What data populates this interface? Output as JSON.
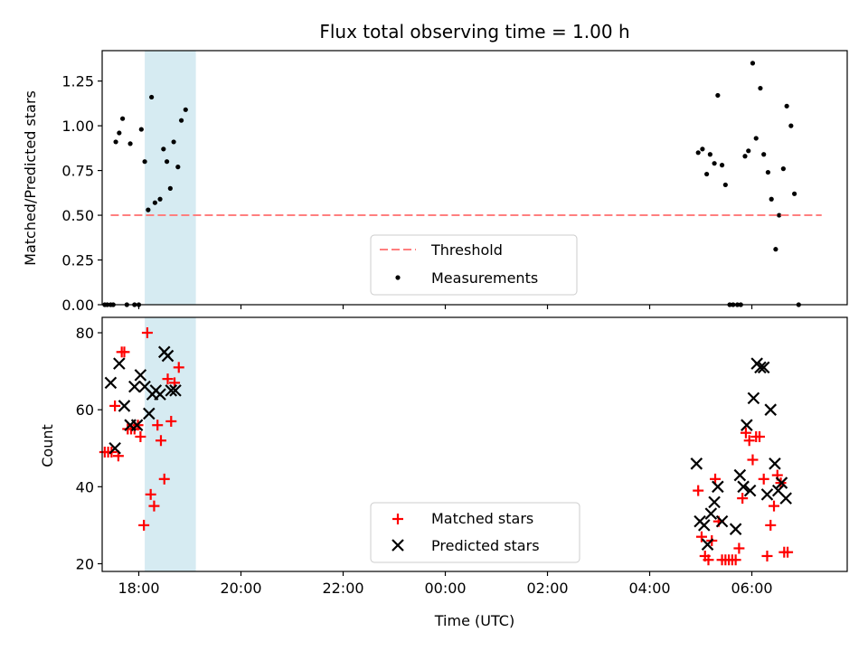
{
  "chart_data": [
    {
      "type": "scatter",
      "title": "Flux total observing time = 1.00 h",
      "xlabel": "",
      "ylabel": "Matched/Predicted stars",
      "ylim": [
        0,
        1.42
      ],
      "xlim": [
        "17:17",
        "07:52"
      ],
      "x_tick_labels": [
        "18:00",
        "20:00",
        "22:00",
        "00:00",
        "02:00",
        "04:00",
        "06:00"
      ],
      "y_ticks": [
        "0.00",
        "0.25",
        "0.50",
        "0.75",
        "1.00",
        "1.25"
      ],
      "highlight_span": [
        "18:07",
        "19:07"
      ],
      "highlight_color": "#add8e6",
      "threshold": {
        "name": "Threshold",
        "value": 0.5,
        "x_range": [
          "17:27",
          "07:22"
        ],
        "color": "#ff7f7f"
      },
      "legend": {
        "position": "lower-center",
        "entries": [
          "Threshold",
          "Measurements"
        ]
      },
      "series": [
        {
          "name": "Measurements",
          "marker": "dot",
          "color": "#000000",
          "points": [
            [
              "17:20",
              0.0
            ],
            [
              "17:23",
              0.0
            ],
            [
              "17:27",
              0.0
            ],
            [
              "17:30",
              0.0
            ],
            [
              "17:33",
              0.91
            ],
            [
              "17:37",
              0.96
            ],
            [
              "17:41",
              1.04
            ],
            [
              "17:46",
              0.0
            ],
            [
              "17:50",
              0.9
            ],
            [
              "17:55",
              0.0
            ],
            [
              "18:00",
              0.0
            ],
            [
              "18:03",
              0.98
            ],
            [
              "18:07",
              0.8
            ],
            [
              "18:11",
              0.53
            ],
            [
              "18:15",
              1.16
            ],
            [
              "18:19",
              0.57
            ],
            [
              "18:25",
              0.59
            ],
            [
              "18:29",
              0.87
            ],
            [
              "18:33",
              0.8
            ],
            [
              "18:37",
              0.65
            ],
            [
              "18:41",
              0.91
            ],
            [
              "18:46",
              0.77
            ],
            [
              "18:50",
              1.03
            ],
            [
              "18:55",
              1.09
            ],
            [
              "04:57",
              0.85
            ],
            [
              "05:02",
              0.87
            ],
            [
              "05:07",
              0.73
            ],
            [
              "05:11",
              0.84
            ],
            [
              "05:16",
              0.79
            ],
            [
              "05:20",
              1.17
            ],
            [
              "05:25",
              0.78
            ],
            [
              "05:29",
              0.67
            ],
            [
              "05:34",
              0.0
            ],
            [
              "05:38",
              0.0
            ],
            [
              "05:43",
              0.0
            ],
            [
              "05:47",
              0.0
            ],
            [
              "05:52",
              0.83
            ],
            [
              "05:56",
              0.86
            ],
            [
              "06:01",
              1.35
            ],
            [
              "06:05",
              0.93
            ],
            [
              "06:10",
              1.21
            ],
            [
              "06:14",
              0.84
            ],
            [
              "06:19",
              0.74
            ],
            [
              "06:23",
              0.59
            ],
            [
              "06:28",
              0.31
            ],
            [
              "06:32",
              0.5
            ],
            [
              "06:37",
              0.76
            ],
            [
              "06:41",
              1.11
            ],
            [
              "06:46",
              1.0
            ],
            [
              "06:50",
              0.62
            ],
            [
              "06:55",
              0.0
            ]
          ]
        }
      ]
    },
    {
      "type": "scatter",
      "title": "",
      "xlabel": "Time (UTC)",
      "ylabel": "Count",
      "ylim": [
        18,
        84
      ],
      "xlim": [
        "17:17",
        "07:52"
      ],
      "x_tick_labels": [
        "18:00",
        "20:00",
        "22:00",
        "00:00",
        "02:00",
        "04:00",
        "06:00"
      ],
      "y_ticks": [
        "20",
        "40",
        "60",
        "80"
      ],
      "highlight_span": [
        "18:07",
        "19:07"
      ],
      "highlight_color": "#add8e6",
      "legend": {
        "position": "lower-center",
        "entries": [
          "Matched stars",
          "Predicted stars"
        ]
      },
      "series": [
        {
          "name": "Matched stars",
          "marker": "plus",
          "color": "#ff0000",
          "points": [
            [
              "17:20",
              49
            ],
            [
              "17:24",
              49
            ],
            [
              "17:28",
              49
            ],
            [
              "17:32",
              61
            ],
            [
              "17:36",
              48
            ],
            [
              "17:40",
              75
            ],
            [
              "17:43",
              75
            ],
            [
              "17:47",
              55
            ],
            [
              "17:51",
              55
            ],
            [
              "17:55",
              55
            ],
            [
              "17:59",
              56
            ],
            [
              "18:02",
              53
            ],
            [
              "18:06",
              30
            ],
            [
              "18:10",
              80
            ],
            [
              "18:14",
              38
            ],
            [
              "18:18",
              35
            ],
            [
              "18:22",
              56
            ],
            [
              "18:26",
              52
            ],
            [
              "18:30",
              42
            ],
            [
              "18:34",
              68
            ],
            [
              "18:38",
              57
            ],
            [
              "18:42",
              67
            ],
            [
              "18:47",
              71
            ],
            [
              "04:57",
              39
            ],
            [
              "05:01",
              27
            ],
            [
              "05:05",
              22
            ],
            [
              "05:09",
              21
            ],
            [
              "05:13",
              26
            ],
            [
              "05:17",
              42
            ],
            [
              "05:21",
              31
            ],
            [
              "05:25",
              21
            ],
            [
              "05:29",
              21
            ],
            [
              "05:33",
              21
            ],
            [
              "05:37",
              21
            ],
            [
              "05:41",
              21
            ],
            [
              "05:45",
              24
            ],
            [
              "05:49",
              37
            ],
            [
              "05:53",
              54
            ],
            [
              "05:57",
              52
            ],
            [
              "06:01",
              47
            ],
            [
              "06:05",
              53
            ],
            [
              "06:09",
              53
            ],
            [
              "06:14",
              42
            ],
            [
              "06:18",
              22
            ],
            [
              "06:22",
              30
            ],
            [
              "06:26",
              35
            ],
            [
              "06:30",
              43
            ],
            [
              "06:34",
              41
            ],
            [
              "06:38",
              23
            ],
            [
              "06:42",
              23
            ]
          ]
        },
        {
          "name": "Predicted stars",
          "marker": "x",
          "color": "#000000",
          "points": [
            [
              "17:27",
              67
            ],
            [
              "17:32",
              50
            ],
            [
              "17:37",
              72
            ],
            [
              "17:43",
              61
            ],
            [
              "17:50",
              56
            ],
            [
              "17:55",
              66
            ],
            [
              "17:58",
              56
            ],
            [
              "18:02",
              69
            ],
            [
              "18:07",
              66
            ],
            [
              "18:12",
              59
            ],
            [
              "18:16",
              64
            ],
            [
              "18:20",
              65
            ],
            [
              "18:25",
              64
            ],
            [
              "18:30",
              75
            ],
            [
              "18:34",
              74
            ],
            [
              "18:38",
              65
            ],
            [
              "18:43",
              65
            ],
            [
              "04:55",
              46
            ],
            [
              "04:59",
              31
            ],
            [
              "05:04",
              30
            ],
            [
              "05:08",
              25
            ],
            [
              "05:12",
              33
            ],
            [
              "05:16",
              36
            ],
            [
              "05:20",
              40
            ],
            [
              "05:25",
              31
            ],
            [
              "05:41",
              29
            ],
            [
              "05:46",
              43
            ],
            [
              "05:50",
              40
            ],
            [
              "05:54",
              56
            ],
            [
              "05:58",
              39
            ],
            [
              "06:02",
              63
            ],
            [
              "06:06",
              72
            ],
            [
              "06:10",
              71
            ],
            [
              "06:14",
              71
            ],
            [
              "06:18",
              38
            ],
            [
              "06:22",
              60
            ],
            [
              "06:27",
              46
            ],
            [
              "06:31",
              39
            ],
            [
              "06:35",
              41
            ],
            [
              "06:40",
              37
            ]
          ]
        }
      ]
    }
  ]
}
